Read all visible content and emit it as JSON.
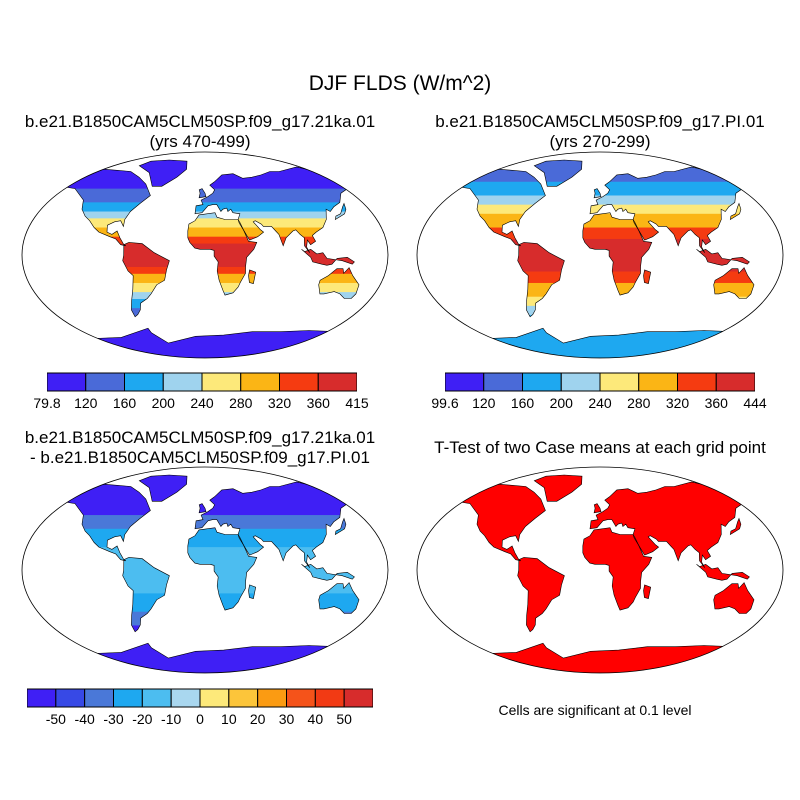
{
  "main_title": "DJF FLDS (W/m^2)",
  "panels": [
    {
      "title_line1": "b.e21.B1850CAM5CLM50SP.f09_g17.21ka.01",
      "title_line2": "(yrs 470-499)"
    },
    {
      "title_line1": "b.e21.B1850CAM5CLM50SP.f09_g17.PI.01",
      "title_line2": "(yrs 270-299)"
    },
    {
      "title_line1": "b.e21.B1850CAM5CLM50SP.f09_g17.21ka.01",
      "title_line2": "- b.e21.B1850CAM5CLM50SP.f09_g17.PI.01"
    },
    {
      "title_line1": "T-Test of two Case means at each grid point",
      "title_line2": ""
    }
  ],
  "colorbars": [
    {
      "labels": [
        "79.8",
        "120",
        "160",
        "200",
        "240",
        "280",
        "320",
        "360",
        "415"
      ],
      "colors": [
        "#3f1ff5",
        "#4a6ad8",
        "#1ea8f0",
        "#9fd3ee",
        "#fde97a",
        "#fbb515",
        "#f53b11",
        "#d72c2c"
      ]
    },
    {
      "labels": [
        "99.6",
        "120",
        "160",
        "200",
        "240",
        "280",
        "320",
        "360",
        "444"
      ],
      "colors": [
        "#3f1ff5",
        "#4a6ad8",
        "#1ea8f0",
        "#9fd3ee",
        "#fde97a",
        "#fbb515",
        "#f53b11",
        "#d72c2c"
      ]
    },
    {
      "labels": [
        "-50",
        "-40",
        "-30",
        "-20",
        "-10",
        "0",
        "10",
        "20",
        "30",
        "40",
        "50"
      ],
      "colors": [
        "#3f1ff5",
        "#3749e6",
        "#4a78d8",
        "#1ea8f0",
        "#4cbdf0",
        "#a9d7ef",
        "#fde97a",
        "#fcc53a",
        "#fb9b12",
        "#f5531a",
        "#f23a14",
        "#d72c2c"
      ]
    }
  ],
  "map_colors": {
    "ocean": "#ffffff",
    "tropics_warm": "#d72c2c",
    "subtropics": "#f53b11",
    "midlat": "#fbb515",
    "desert": "#fde97a",
    "cool": "#9fd3ee",
    "cold": "#1ea8f0",
    "colder": "#4a6ad8",
    "coldest": "#3f1ff5",
    "diff_strong": "#3f1ff5",
    "diff_mid": "#4a78d8",
    "diff_weak": "#1ea8f0",
    "diff_light": "#4cbdf0",
    "ttest": "#ff0000"
  },
  "significance_note": "Cells are significant at 0.1 level"
}
